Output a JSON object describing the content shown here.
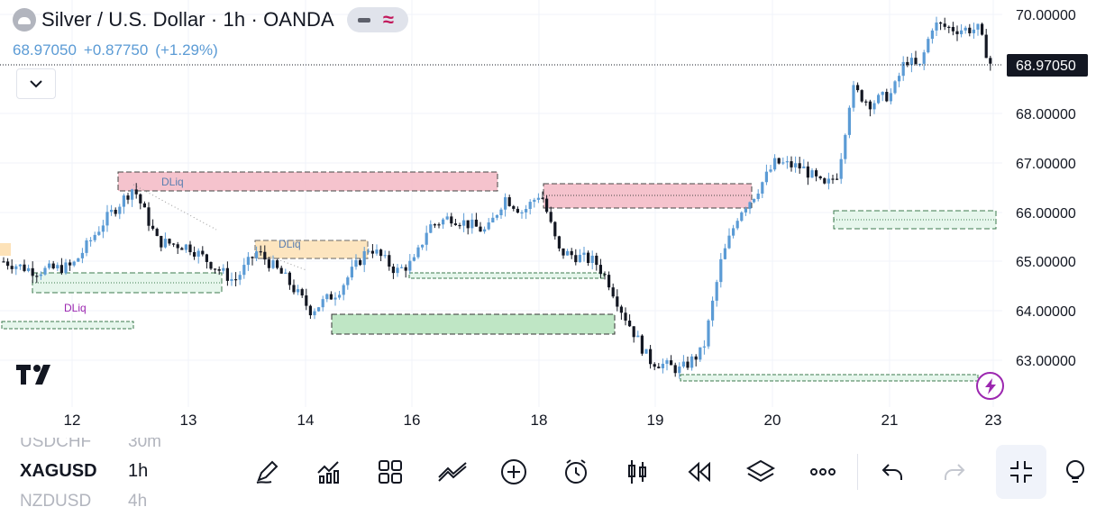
{
  "header": {
    "title": "Silver / U.S. Dollar · 1h · OANDA",
    "last_price": "68.97050",
    "change": "+0.87750",
    "change_pct": "(+1.29%)"
  },
  "chart": {
    "price_axis_labels": [
      "70.00000",
      "68.00000",
      "67.00000",
      "66.00000",
      "65.00000",
      "64.00000",
      "63.00000"
    ],
    "current_price_label": "68.97050",
    "time_axis_labels": [
      "12",
      "13",
      "14",
      "16",
      "18",
      "19",
      "20",
      "21",
      "23"
    ],
    "annotations": [
      "DLiq",
      "DLiq",
      "DLiq"
    ],
    "colors": {
      "up": "#5b9bd5",
      "down": "#131722",
      "supply_zone": "#f3b8c4",
      "demand_zone": "#bfe6c5",
      "demand_light": "#e6f6ec",
      "orange_zone": "#fde2b8",
      "annotation_blue": "#5b7fb0",
      "annotation_purple": "#9c27b0"
    }
  },
  "symbols": [
    {
      "symbol": "USDCHF",
      "interval": "30m"
    },
    {
      "symbol": "XAGUSD",
      "interval": "1h"
    },
    {
      "symbol": "NZDUSD",
      "interval": "4h"
    }
  ],
  "toolbar": {
    "icons": [
      "pencil-icon",
      "indicators-icon",
      "templates-icon",
      "drawings-icon",
      "add-icon",
      "alert-icon",
      "candles-icon",
      "replay-icon",
      "layers-icon",
      "more-icon",
      "undo-icon",
      "redo-icon",
      "fullscreen-exit-icon",
      "lightbulb-icon"
    ]
  }
}
